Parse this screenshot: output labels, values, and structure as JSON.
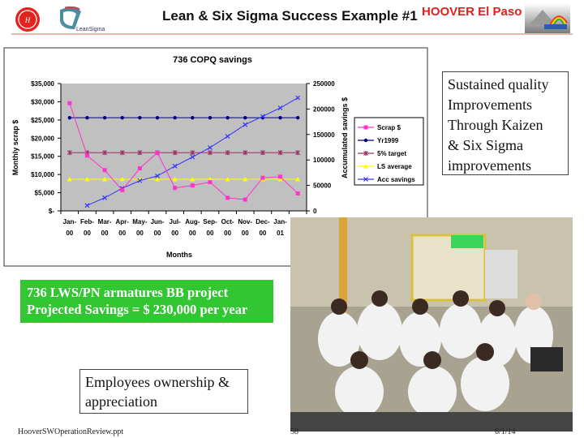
{
  "header": {
    "title": "Lean & Six Sigma Success Example #1",
    "brand": "HOOVER El Paso",
    "logos": [
      "hoover-logo",
      "leansigma-logo",
      "mountain-rainbow-logo"
    ],
    "leansigma_logo_text": "LeanSigma"
  },
  "chart_data": {
    "type": "line",
    "title": "736 COPQ savings",
    "xlabel": "Months",
    "ylabel": "Monthly scrap $",
    "y2label": "Accumulated savings $",
    "categories": [
      "Jan-00",
      "Feb-00",
      "Mar-00",
      "Apr-00",
      "May-00",
      "Jun-00",
      "Jul-00",
      "Aug-00",
      "Sep-00",
      "Oct-00",
      "Nov-00",
      "Dec-00",
      "Jan-01",
      ""
    ],
    "ylim": [
      0,
      35000
    ],
    "y_ticks": [
      "$-",
      "$5,000",
      "$10,000",
      "$15,000",
      "$20,000",
      "$25,000",
      "$30,000",
      "$35,000"
    ],
    "y2lim": [
      0,
      250000
    ],
    "y2_ticks": [
      "0",
      "50000",
      "100000",
      "150000",
      "200000",
      "250000"
    ],
    "grid": false,
    "plot_background": "#c0c0c0",
    "legend_position": "right",
    "series": [
      {
        "name": "Scrap $",
        "axis": "left",
        "color": "#ff33cc",
        "marker": "square",
        "values": [
          29600,
          15200,
          11200,
          5700,
          11700,
          16000,
          6300,
          7000,
          7900,
          3600,
          3100,
          9100,
          9400,
          4800
        ]
      },
      {
        "name": "Yr1999",
        "axis": "left",
        "color": "#000080",
        "marker": "diamond",
        "values": [
          25600,
          25600,
          25600,
          25600,
          25600,
          25600,
          25600,
          25600,
          25600,
          25600,
          25600,
          25600,
          25600,
          25600
        ]
      },
      {
        "name": "5% target",
        "axis": "left",
        "color": "#993366",
        "marker": "star",
        "values": [
          16000,
          16000,
          16000,
          16000,
          16000,
          16000,
          16000,
          16000,
          16000,
          16000,
          16000,
          16000,
          16000,
          16000
        ]
      },
      {
        "name": "LS average",
        "axis": "left",
        "color": "#ffff00",
        "marker": "triangle",
        "values": [
          8700,
          8700,
          8700,
          8700,
          8700,
          8700,
          8700,
          8700,
          8700,
          8700,
          8700,
          8700,
          8700,
          8700
        ]
      },
      {
        "name": "Acc savings",
        "axis": "right",
        "color": "#3333ff",
        "marker": "x",
        "values": [
          null,
          10700,
          25700,
          44300,
          59300,
          68600,
          87900,
          105700,
          124300,
          146400,
          169300,
          185700,
          202100,
          222000
        ]
      }
    ]
  },
  "quality_box": {
    "lines": [
      "Sustained quality",
      "Improvements",
      "Through Kaizen",
      "& Six Sigma",
      "improvements"
    ]
  },
  "project_box": {
    "line1": "736 LWS/PN armatures BB project",
    "line2": "Projected Savings = $ 230,000 per year"
  },
  "employees_box": {
    "line1": "Employees ownership &",
    "line2": "appreciation"
  },
  "footer": {
    "file": "HooverSWOperationReview.ppt",
    "page": "58",
    "date": "6/1/14"
  }
}
